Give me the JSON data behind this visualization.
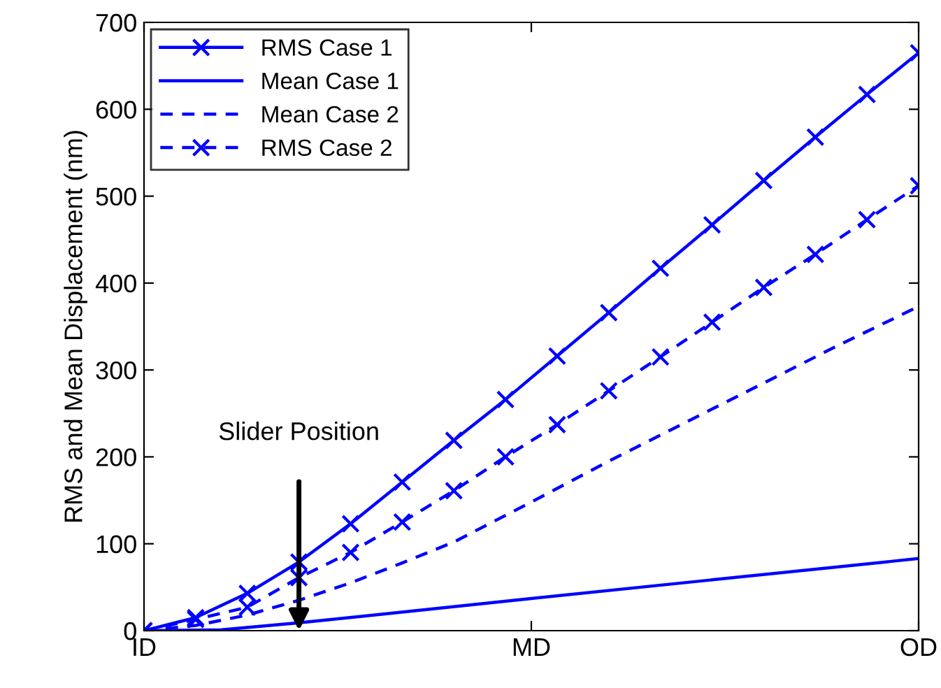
{
  "chart_data": {
    "type": "line",
    "ylabel": "RMS and Mean Displacement (nm)",
    "categories": [
      "ID",
      null,
      null,
      null,
      null,
      null,
      null,
      null,
      null,
      null,
      null,
      null,
      null,
      null,
      null,
      "MD",
      null,
      null,
      null,
      null,
      null,
      null,
      null,
      null,
      null,
      null,
      null,
      null,
      null,
      null,
      "OD"
    ],
    "ylim": [
      0,
      700
    ],
    "yticks": [
      0,
      100,
      200,
      300,
      400,
      500,
      600,
      700
    ],
    "grid": false,
    "legend": "top left",
    "series": [
      {
        "name": "RMS Case 1",
        "color": "#0000ff",
        "marker": "cross",
        "line_style": "solid",
        "values": [
          0,
          null,
          15,
          null,
          43,
          null,
          79,
          null,
          123,
          null,
          171,
          null,
          219,
          null,
          266,
          null,
          316,
          null,
          366,
          null,
          417,
          null,
          467,
          null,
          518,
          null,
          568,
          null,
          617,
          null,
          665
        ]
      },
      {
        "name": "Mean Case 1",
        "color": "#0000ff",
        "marker": "none",
        "line_style": "solid",
        "values": [
          0,
          null,
          null,
          1,
          null,
          null,
          9,
          null,
          null,
          null,
          null,
          null,
          null,
          null,
          null,
          37,
          null,
          null,
          null,
          null,
          null,
          null,
          null,
          null,
          null,
          null,
          null,
          null,
          null,
          null,
          83
        ]
      },
      {
        "name": "Mean Case 2",
        "color": "#0000ff",
        "marker": "none",
        "line_style": "dashed",
        "values": [
          0,
          null,
          6,
          null,
          18,
          null,
          35,
          null,
          55,
          null,
          78,
          null,
          102,
          null,
          null,
          148,
          null,
          null,
          195,
          null,
          null,
          240,
          null,
          null,
          285,
          null,
          null,
          330,
          null,
          null,
          373
        ]
      },
      {
        "name": "RMS Case 2",
        "color": "#0000ff",
        "marker": "cross",
        "line_style": "dashed",
        "values": [
          0,
          null,
          13,
          null,
          27,
          null,
          61,
          null,
          90,
          null,
          125,
          null,
          161,
          null,
          200,
          null,
          237,
          null,
          276,
          null,
          315,
          null,
          355,
          null,
          395,
          null,
          433,
          null,
          473,
          null,
          512
        ]
      }
    ],
    "annotations": [
      "Slider Position"
    ]
  }
}
